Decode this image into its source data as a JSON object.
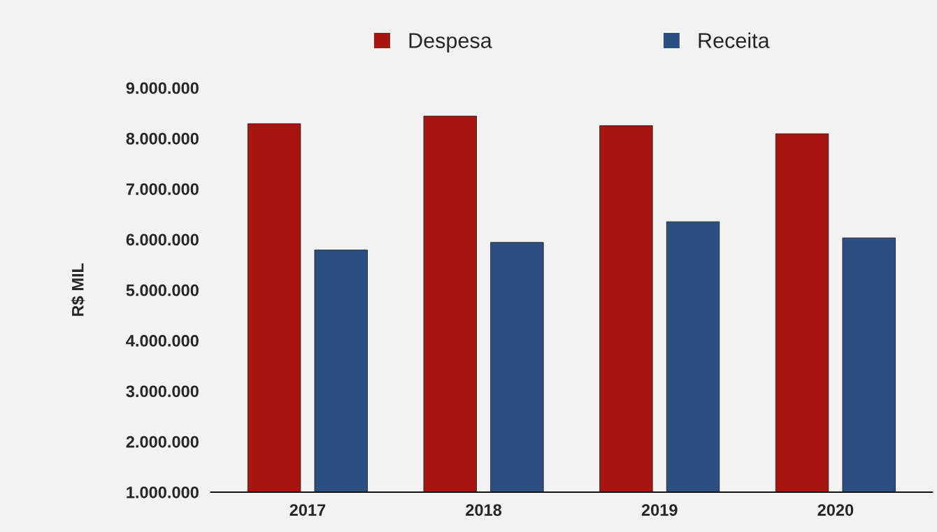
{
  "chart_data": {
    "type": "bar",
    "ylabel": "R$ MIL",
    "categories": [
      "2017",
      "2018",
      "2019",
      "2020"
    ],
    "series": [
      {
        "name": "Despesa",
        "color": "#a8140e",
        "values": [
          8290000,
          8440000,
          8250000,
          8090000
        ]
      },
      {
        "name": "Receita",
        "color": "#2a4f80",
        "values": [
          5790000,
          5940000,
          6350000,
          6030000
        ]
      }
    ],
    "ylim": [
      1000000,
      9000000
    ],
    "yticks": [
      {
        "value": 1000000,
        "label": "1.000.000"
      },
      {
        "value": 2000000,
        "label": "2.000.000"
      },
      {
        "value": 3000000,
        "label": "3.000.000"
      },
      {
        "value": 4000000,
        "label": "4.000.000"
      },
      {
        "value": 5000000,
        "label": "5.000.000"
      },
      {
        "value": 6000000,
        "label": "6.000.000"
      },
      {
        "value": 7000000,
        "label": "7.000.000"
      },
      {
        "value": 8000000,
        "label": "8.000.000"
      },
      {
        "value": 9000000,
        "label": "9.000.000"
      }
    ],
    "grid": false,
    "legend": "top"
  }
}
